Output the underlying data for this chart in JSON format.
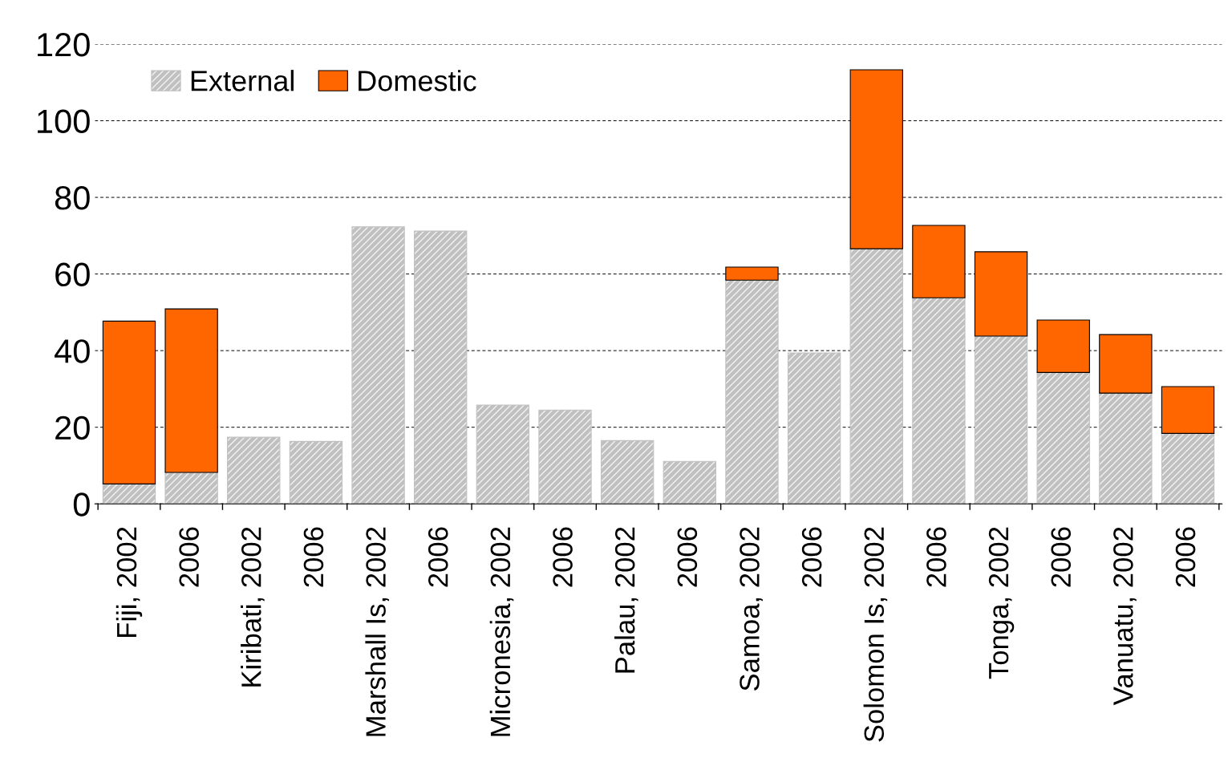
{
  "chart_data": {
    "type": "bar",
    "stacked": true,
    "categories": [
      "Fiji, 2002",
      "2006",
      "Kiribati, 2002",
      "2006",
      "Marshall Is, 2002",
      "2006",
      "Micronesia, 2002",
      "2006",
      "Palau, 2002",
      "2006",
      "Samoa, 2002",
      "2006",
      "Solomon Is, 2002",
      "2006",
      "Tonga, 2002",
      "2006",
      "Vanuatu, 2002",
      "2006"
    ],
    "series": [
      {
        "name": "External",
        "color": "#c0c0c0",
        "values": [
          5.2,
          8.2,
          17.4,
          16.3,
          72.3,
          71.2,
          25.8,
          24.5,
          16.5,
          11.1,
          58.4,
          39.4,
          66.6,
          53.8,
          43.8,
          34.3,
          28.9,
          18.4
        ]
      },
      {
        "name": "Domestic",
        "color": "#ff6600",
        "values": [
          42.5,
          42.7,
          null,
          null,
          null,
          null,
          null,
          null,
          null,
          null,
          3.4,
          null,
          46.7,
          18.9,
          22.0,
          13.7,
          15.3,
          12.2
        ]
      }
    ],
    "ylim": [
      0,
      120
    ],
    "yticks": [
      0,
      20,
      40,
      60,
      80,
      100,
      120
    ],
    "grid": "y",
    "legend": "top left"
  }
}
